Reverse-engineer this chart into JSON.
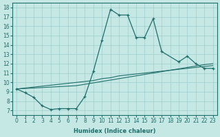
{
  "xlabel": "Humidex (Indice chaleur)",
  "xlim": [
    -0.5,
    23.5
  ],
  "ylim": [
    6.5,
    18.5
  ],
  "xticks": [
    0,
    1,
    2,
    3,
    4,
    5,
    6,
    7,
    8,
    9,
    10,
    11,
    12,
    13,
    14,
    15,
    16,
    17,
    18,
    19,
    20,
    21,
    22,
    23
  ],
  "yticks": [
    7,
    8,
    9,
    10,
    11,
    12,
    13,
    14,
    15,
    16,
    17,
    18
  ],
  "bg_color": "#c5e8e5",
  "line_color": "#1e6e6a",
  "grid_color": "#9ecece",
  "curve1_x": [
    0,
    1,
    2,
    3,
    4,
    5,
    6,
    7,
    8,
    9,
    10,
    11,
    12,
    13,
    14,
    15,
    16,
    17,
    19,
    20,
    21,
    22,
    23
  ],
  "curve1_y": [
    9.3,
    8.9,
    8.4,
    7.5,
    7.1,
    7.2,
    7.2,
    7.2,
    8.5,
    11.2,
    14.5,
    17.8,
    17.2,
    17.2,
    14.8,
    14.8,
    16.8,
    13.3,
    12.2,
    12.8,
    12.0,
    11.5,
    11.5
  ],
  "curve2_x": [
    0,
    1,
    2,
    3,
    4,
    5,
    6,
    7,
    8,
    9,
    10,
    11,
    12,
    13,
    14,
    15,
    16,
    17,
    18,
    19,
    20,
    21,
    22,
    23
  ],
  "curve2_y": [
    9.3,
    9.4,
    9.5,
    9.6,
    9.7,
    9.8,
    9.9,
    10.0,
    10.1,
    10.2,
    10.4,
    10.5,
    10.7,
    10.8,
    10.9,
    11.0,
    11.1,
    11.2,
    11.3,
    11.4,
    11.5,
    11.6,
    11.7,
    11.8
  ],
  "curve3_x": [
    0,
    1,
    2,
    3,
    4,
    5,
    6,
    7,
    8,
    9,
    10,
    11,
    12,
    13,
    14,
    15,
    16,
    17,
    18,
    19,
    20,
    21,
    22,
    23
  ],
  "curve3_y": [
    9.3,
    9.35,
    9.4,
    9.45,
    9.5,
    9.55,
    9.6,
    9.65,
    9.8,
    9.95,
    10.1,
    10.25,
    10.4,
    10.55,
    10.7,
    10.85,
    11.0,
    11.15,
    11.3,
    11.45,
    11.6,
    11.75,
    11.9,
    12.0
  ]
}
